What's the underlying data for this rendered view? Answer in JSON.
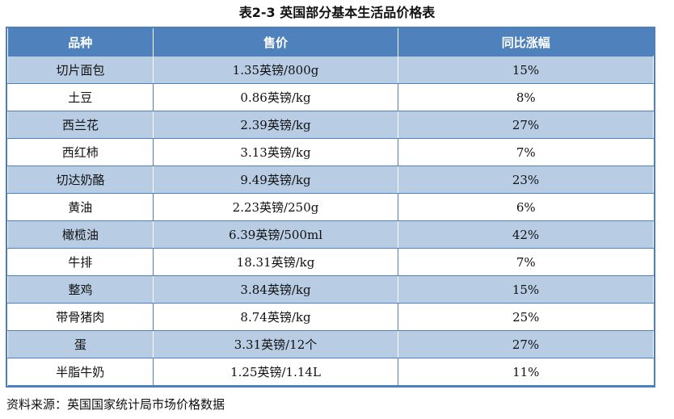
{
  "title": "表2-3   英国部分基本生活品价格表",
  "table": {
    "headers": [
      "品种",
      "售价",
      "同比涨幅"
    ],
    "rows": [
      {
        "item": "切片面包",
        "price": "1.35英镑/800g",
        "change": "15%"
      },
      {
        "item": "土豆",
        "price": "0.86英镑/kg",
        "change": "8%"
      },
      {
        "item": "西兰花",
        "price": "2.39英镑/kg",
        "change": "27%"
      },
      {
        "item": "西红柿",
        "price": "3.13英镑/kg",
        "change": "7%"
      },
      {
        "item": "切达奶酪",
        "price": "9.49英镑/kg",
        "change": "23%"
      },
      {
        "item": "黄油",
        "price": "2.23英镑/250g",
        "change": "6%"
      },
      {
        "item": "橄榄油",
        "price": "6.39英镑/500ml",
        "change": "42%"
      },
      {
        "item": "牛排",
        "price": "18.31英镑/kg",
        "change": "7%"
      },
      {
        "item": "整鸡",
        "price": "3.84英镑/kg",
        "change": "15%"
      },
      {
        "item": "带骨猪肉",
        "price": "8.74英镑/kg",
        "change": "25%"
      },
      {
        "item": "蛋",
        "price": "3.31英镑/12个",
        "change": "27%"
      },
      {
        "item": "半脂牛奶",
        "price": "1.25英镑/1.14L",
        "change": "11%"
      }
    ]
  },
  "source": "资料来源：英国国家统计局市场价格数据",
  "colors": {
    "header_bg": "#4f81bd",
    "band_bg": "#b8cce4",
    "border": "#4a7fc1"
  }
}
